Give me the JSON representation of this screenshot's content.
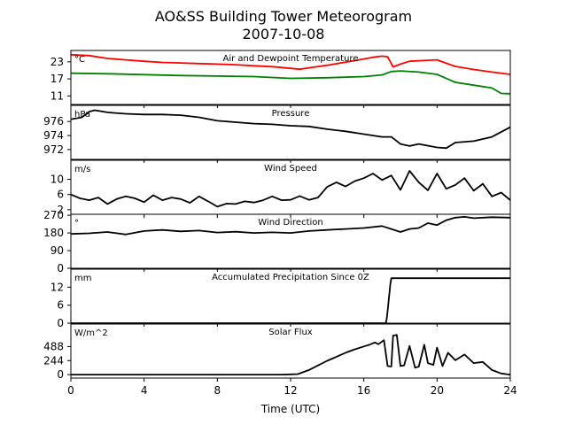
{
  "title_line1": "AO&SS Building Tower Meteorogram",
  "title_line2": "2007-10-08",
  "chart_data": [
    {
      "type": "line",
      "title": "Air and Dewpoint Temperature",
      "units": "°C",
      "x_range": [
        0,
        24
      ],
      "ylim": [
        8,
        27
      ],
      "yticks": [
        11,
        17,
        23
      ],
      "series": [
        {
          "color": "#ff0000",
          "x": [
            0,
            1,
            2,
            3,
            4,
            5,
            6,
            7,
            8,
            9,
            10,
            11,
            12,
            12.5,
            13,
            14,
            15,
            16,
            16.5,
            17,
            17.3,
            17.6,
            18,
            18.5,
            19,
            20,
            20.5,
            21,
            22,
            23,
            24
          ],
          "y": [
            25.5,
            25.2,
            24.2,
            23.7,
            23.2,
            22.8,
            22.6,
            22.4,
            22.2,
            22,
            21.6,
            21.3,
            20.7,
            20.4,
            20.9,
            21.8,
            22.9,
            24,
            24.6,
            25,
            24.8,
            21.2,
            22.2,
            23.2,
            23.4,
            23.7,
            22.5,
            21.4,
            20.3,
            19.4,
            18.6
          ]
        },
        {
          "color": "#008000",
          "x": [
            0,
            2,
            4,
            6,
            8,
            10,
            12,
            14,
            16,
            17,
            17.5,
            18,
            19,
            20,
            21,
            22,
            23,
            23.5,
            24
          ],
          "y": [
            19,
            18.8,
            18.5,
            18.2,
            18,
            17.8,
            17.2,
            17.4,
            17.8,
            18.4,
            19.6,
            19.8,
            19.4,
            18.6,
            15.8,
            14.8,
            13.8,
            11.9,
            11.8
          ]
        }
      ]
    },
    {
      "type": "line",
      "title": "Pressure",
      "units": "hPa",
      "x_range": [
        0,
        24
      ],
      "ylim": [
        970.6,
        978.3
      ],
      "yticks": [
        972,
        974,
        976
      ],
      "series": [
        {
          "color": "#000000",
          "x": [
            0,
            0.6,
            1,
            1.3,
            2,
            3,
            4,
            5,
            6,
            7,
            8,
            9,
            10,
            11,
            12,
            13,
            14,
            15,
            16,
            17,
            17.5,
            18,
            18.5,
            19,
            20,
            20.5,
            21,
            22,
            23,
            24
          ],
          "y": [
            976.3,
            976.6,
            977.4,
            977.6,
            977.3,
            977.1,
            977,
            977,
            976.9,
            976.6,
            976.1,
            975.9,
            975.7,
            975.6,
            975.4,
            975.3,
            974.9,
            974.6,
            974.2,
            973.8,
            973.8,
            972.8,
            972.5,
            972.8,
            972.3,
            972.2,
            973,
            973.2,
            973.8,
            975.2
          ]
        }
      ]
    },
    {
      "type": "line",
      "title": "Wind Speed",
      "units": "m/s",
      "x_range": [
        0,
        24
      ],
      "ylim": [
        0.8,
        15
      ],
      "yticks": [
        2,
        6,
        10
      ],
      "series": [
        {
          "color": "#000000",
          "x": [
            0,
            0.5,
            1,
            1.5,
            2,
            2.5,
            3,
            3.5,
            4,
            4.5,
            5,
            5.5,
            6,
            6.5,
            7,
            7.5,
            8,
            8.5,
            9,
            9.5,
            10,
            10.5,
            11,
            11.5,
            12,
            12.5,
            13,
            13.5,
            14,
            14.5,
            15,
            15.5,
            16,
            16.5,
            17,
            17.5,
            18,
            18.5,
            19,
            19.5,
            20,
            20.5,
            21,
            21.5,
            22,
            22.5,
            23,
            23.5,
            24
          ],
          "y": [
            6,
            5,
            4.5,
            5.2,
            3.5,
            4.8,
            5.5,
            5,
            4,
            5.8,
            4.5,
            5.2,
            4.8,
            3.8,
            5.5,
            4.2,
            2.8,
            3.6,
            3.5,
            4.2,
            3.9,
            4.5,
            5.5,
            4.5,
            4.6,
            5.6,
            4.6,
            5.2,
            8,
            9.2,
            8.1,
            9.5,
            10.3,
            11.5,
            9.8,
            11,
            7.2,
            12.2,
            9.2,
            7.1,
            11.5,
            7.5,
            8.5,
            10.3,
            7,
            8.8,
            5.5,
            6.5,
            4.5
          ]
        }
      ]
    },
    {
      "type": "line",
      "title": "Wind Direction",
      "units": "°",
      "x_range": [
        0,
        24
      ],
      "ylim": [
        0,
        275
      ],
      "yticks": [
        0,
        90,
        180,
        270
      ],
      "series": [
        {
          "color": "#000000",
          "x": [
            0,
            1,
            2,
            3,
            4,
            5,
            6,
            7,
            8,
            9,
            10,
            11,
            12,
            13,
            14,
            15,
            16,
            17,
            18,
            18.5,
            19,
            19.5,
            20,
            20.5,
            21,
            21.5,
            22,
            23,
            24
          ],
          "y": [
            175,
            178,
            185,
            172,
            190,
            195,
            188,
            192,
            182,
            186,
            180,
            183,
            180,
            190,
            195,
            200,
            205,
            215,
            185,
            200,
            205,
            230,
            220,
            245,
            258,
            262,
            255,
            260,
            258
          ]
        }
      ]
    },
    {
      "type": "line",
      "title": "Accumulated Precipitation Since 0Z",
      "units": "mm",
      "x_range": [
        0,
        24
      ],
      "ylim": [
        0,
        18
      ],
      "yticks": [
        0,
        6,
        12
      ],
      "series": [
        {
          "color": "#000000",
          "x": [
            0,
            17.2,
            17.25,
            17.3,
            17.45,
            17.5,
            24
          ],
          "y": [
            0,
            0,
            1.5,
            4,
            13,
            15,
            15
          ]
        }
      ]
    },
    {
      "type": "line",
      "title": "Solar Flux",
      "units": "W/m^2",
      "x_range": [
        0,
        24
      ],
      "ylim": [
        -60,
        880
      ],
      "yticks": [
        0,
        244,
        488
      ],
      "series": [
        {
          "color": "#000000",
          "x": [
            0,
            11.5,
            12,
            12.4,
            13,
            13.5,
            14,
            14.5,
            15,
            15.5,
            16,
            16.3,
            16.6,
            16.8,
            17.1,
            17.3,
            17.5,
            17.6,
            17.8,
            18,
            18.2,
            18.5,
            18.8,
            19,
            19.3,
            19.5,
            19.8,
            20,
            20.3,
            20.6,
            21,
            21.5,
            22,
            22.5,
            23,
            23.5,
            24
          ],
          "y": [
            0,
            0,
            5,
            10,
            80,
            160,
            240,
            310,
            380,
            440,
            490,
            520,
            560,
            530,
            600,
            150,
            140,
            680,
            690,
            150,
            160,
            500,
            120,
            140,
            520,
            200,
            170,
            470,
            150,
            380,
            250,
            350,
            200,
            220,
            80,
            20,
            0
          ]
        }
      ]
    }
  ],
  "x_axis": {
    "label": "Time (UTC)",
    "range": [
      0,
      24
    ],
    "ticks": [
      "0",
      "4",
      "8",
      "12",
      "16",
      "20",
      "24"
    ]
  }
}
